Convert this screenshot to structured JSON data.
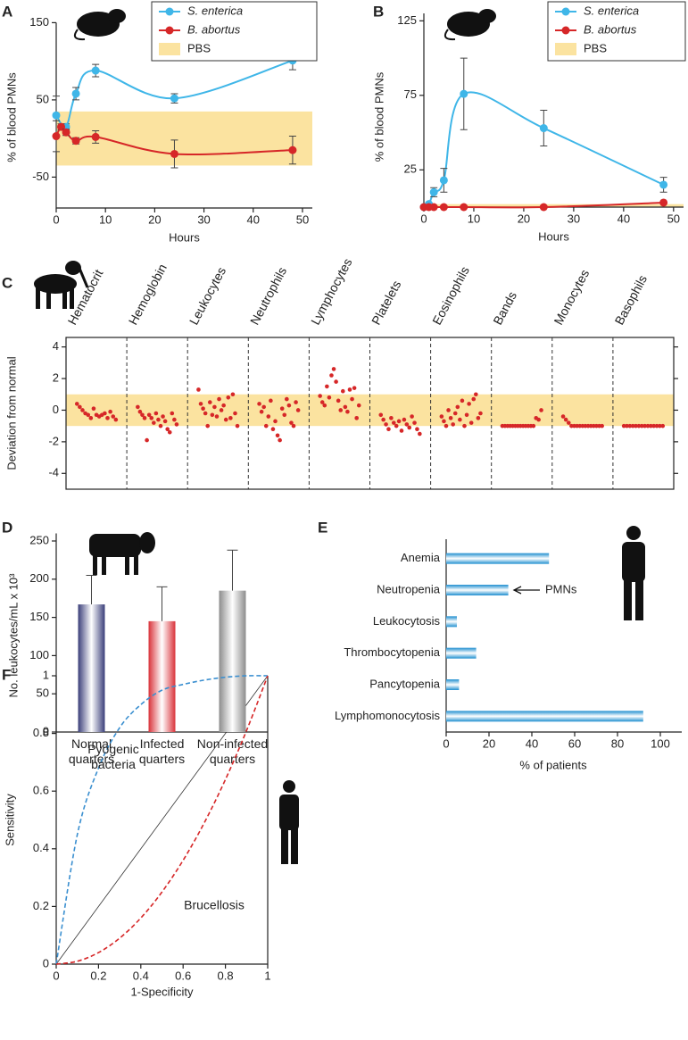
{
  "chart_data": [
    {
      "label": "A",
      "type": "line",
      "ylabel": "% of blood PMNs",
      "xlabel": "Hours",
      "xlim": [
        0,
        52
      ],
      "ylim": [
        -90,
        150
      ],
      "xticks": [
        0,
        10,
        20,
        30,
        40,
        50
      ],
      "yticks": [
        -50,
        50,
        150
      ],
      "band": {
        "name": "PBS",
        "color": "#fbe3a0",
        "range": [
          -35,
          35
        ]
      },
      "series": [
        {
          "name": "S. enterica",
          "color": "#3fb6e8",
          "x": [
            0,
            2,
            4,
            8,
            24,
            48
          ],
          "values": [
            30,
            15,
            58,
            88,
            52,
            101
          ],
          "errors": [
            25,
            4,
            8,
            8,
            6,
            12
          ]
        },
        {
          "name": "B. abortus",
          "color": "#d62728",
          "x": [
            0,
            1,
            2,
            4,
            8,
            24,
            48
          ],
          "values": [
            3,
            15,
            8,
            -3,
            2,
            -20,
            -15
          ],
          "errors": [
            20,
            4,
            4,
            4,
            8,
            18,
            18
          ]
        }
      ]
    },
    {
      "label": "B",
      "type": "line",
      "ylabel": "% of blood PMNs",
      "xlabel": "Hours",
      "xlim": [
        0,
        52
      ],
      "ylim": [
        0,
        130
      ],
      "xticks": [
        0,
        10,
        20,
        30,
        40,
        50
      ],
      "yticks": [
        25,
        75,
        125
      ],
      "band": {
        "name": "PBS",
        "color": "#fbe3a0",
        "range": [
          0,
          2
        ]
      },
      "series": [
        {
          "name": "S. enterica",
          "color": "#3fb6e8",
          "x": [
            0,
            1,
            2,
            4,
            8,
            24,
            48
          ],
          "values": [
            0,
            2,
            10,
            18,
            76,
            53,
            15
          ],
          "errors": [
            0,
            1,
            3,
            8,
            24,
            12,
            5
          ]
        },
        {
          "name": "B. abortus",
          "color": "#d62728",
          "x": [
            0,
            1,
            2,
            4,
            8,
            24,
            48
          ],
          "values": [
            0,
            0,
            0,
            0,
            0,
            0,
            3
          ]
        }
      ]
    },
    {
      "label": "C",
      "type": "strip",
      "ylabel": "Deviation from normal",
      "ylim": [
        -5,
        4.6
      ],
      "yticks": [
        -4,
        -2,
        0,
        2,
        4
      ],
      "color": "#d62728",
      "band": {
        "color": "#fbe3a0",
        "range": [
          -1,
          1
        ]
      },
      "categories": [
        "Hematocrit",
        "Hemoglobin",
        "Leukocytes",
        "Neutrophils",
        "Lymphocytes",
        "Platelets",
        "Eosinophils",
        "Bands",
        "Monocytes",
        "Basophils"
      ],
      "values": [
        [
          0.4,
          0.2,
          0,
          -0.2,
          -0.3,
          -0.5,
          0.1,
          -0.3,
          -0.4,
          -0.3,
          -0.2,
          -0.5,
          -0.1,
          -0.4,
          -0.6
        ],
        [
          0.2,
          -0.1,
          -0.3,
          -0.5,
          -1.9,
          -0.3,
          -0.5,
          -0.8,
          -0.2,
          -0.6,
          -1.0,
          -0.4,
          -0.7,
          -1.2,
          -1.4,
          -0.2,
          -0.6,
          -0.9
        ],
        [
          1.3,
          0.4,
          0.1,
          -0.2,
          -1.0,
          0.5,
          -0.3,
          0.2,
          -0.4,
          0.7,
          0,
          0.3,
          -0.6,
          0.8,
          -0.5,
          1.0,
          -0.2,
          -1.0
        ],
        [
          0.4,
          -0.1,
          0.2,
          -1.0,
          -0.4,
          0.6,
          -1.2,
          -0.7,
          -1.6,
          -1.9,
          0.1,
          -0.3,
          0.7,
          0.3,
          -0.8,
          -1.0,
          0.5,
          0
        ],
        [
          0.9,
          0.5,
          0.3,
          1.5,
          0.8,
          2.2,
          2.6,
          1.8,
          0.6,
          0,
          1.2,
          0.2,
          -0.1,
          1.3,
          0.7,
          1.4,
          -0.5,
          0.3
        ],
        [
          -0.3,
          -0.6,
          -0.9,
          -1.2,
          -0.5,
          -0.8,
          -1.0,
          -0.7,
          -1.3,
          -0.6,
          -0.9,
          -1.1,
          -0.4,
          -0.8,
          -1.2,
          -1.5
        ],
        [
          -0.4,
          -0.7,
          -1.0,
          0,
          -0.5,
          -0.9,
          -0.2,
          0.2,
          -0.6,
          0.6,
          -1.0,
          -0.3,
          0.4,
          -0.8,
          0.7,
          1.0,
          -0.5,
          -0.2
        ],
        [
          -1,
          -1,
          -1,
          -1,
          -1,
          -1,
          -1,
          -1,
          -1,
          -1,
          -1,
          -1,
          -1,
          -0.5,
          -0.6,
          0
        ],
        [
          -0.4,
          -0.6,
          -0.8,
          -1,
          -1,
          -1,
          -1,
          -1,
          -1,
          -1,
          -1,
          -1,
          -1,
          -1,
          -1
        ],
        [
          -1,
          -1,
          -1,
          -1,
          -1,
          -1,
          -1,
          -1,
          -1,
          -1,
          -1,
          -1,
          -1,
          -1
        ]
      ]
    },
    {
      "label": "D",
      "type": "bar",
      "ylabel": "No. leukocytes/mL x 10³",
      "ylim": [
        0,
        260
      ],
      "yticks": [
        0,
        50,
        100,
        150,
        200,
        250
      ],
      "categories": [
        "Normal quarters",
        "Infected quarters",
        "Non-infected quarters"
      ],
      "values": [
        167,
        145,
        185
      ],
      "errors": [
        38,
        45,
        53
      ],
      "colors": [
        "#3b3f7a",
        "#d9323a",
        "#8c8c8c"
      ]
    },
    {
      "label": "E",
      "type": "barh",
      "xlabel": "% of patients",
      "xlim": [
        0,
        110
      ],
      "xticks": [
        0,
        20,
        40,
        60,
        80,
        100
      ],
      "color": "#1f8fd0",
      "categories": [
        "Anemia",
        "Neutropenia",
        "Leukocytosis",
        "Thrombocytopenia",
        "Pancytopenia",
        "Lymphomonocytosis"
      ],
      "values": [
        48,
        29,
        5,
        14,
        6,
        92
      ],
      "annotation": "PMNs"
    },
    {
      "label": "F",
      "type": "line",
      "xlabel": "1-Specificity",
      "ylabel": "Sensitivity",
      "xlim": [
        0,
        1
      ],
      "ylim": [
        0,
        1
      ],
      "xticks": [
        0,
        0.2,
        0.4,
        0.6,
        0.8,
        1
      ],
      "yticks": [
        0,
        0.2,
        0.4,
        0.6,
        0.8,
        1
      ],
      "x": [
        0,
        0.1,
        0.2,
        0.3,
        0.4,
        0.5,
        0.6,
        0.7,
        0.8,
        0.9,
        1
      ],
      "series": [
        {
          "name": "Pyogenic bacteria",
          "color": "#3a8fd0",
          "values": [
            0,
            0.45,
            0.68,
            0.82,
            0.9,
            0.95,
            0.97,
            0.985,
            0.995,
            1,
            1
          ]
        },
        {
          "name": "Brucellosis",
          "color": "#d62728",
          "values": [
            0,
            0.01,
            0.04,
            0.09,
            0.16,
            0.25,
            0.36,
            0.49,
            0.64,
            0.81,
            1
          ]
        }
      ]
    }
  ]
}
